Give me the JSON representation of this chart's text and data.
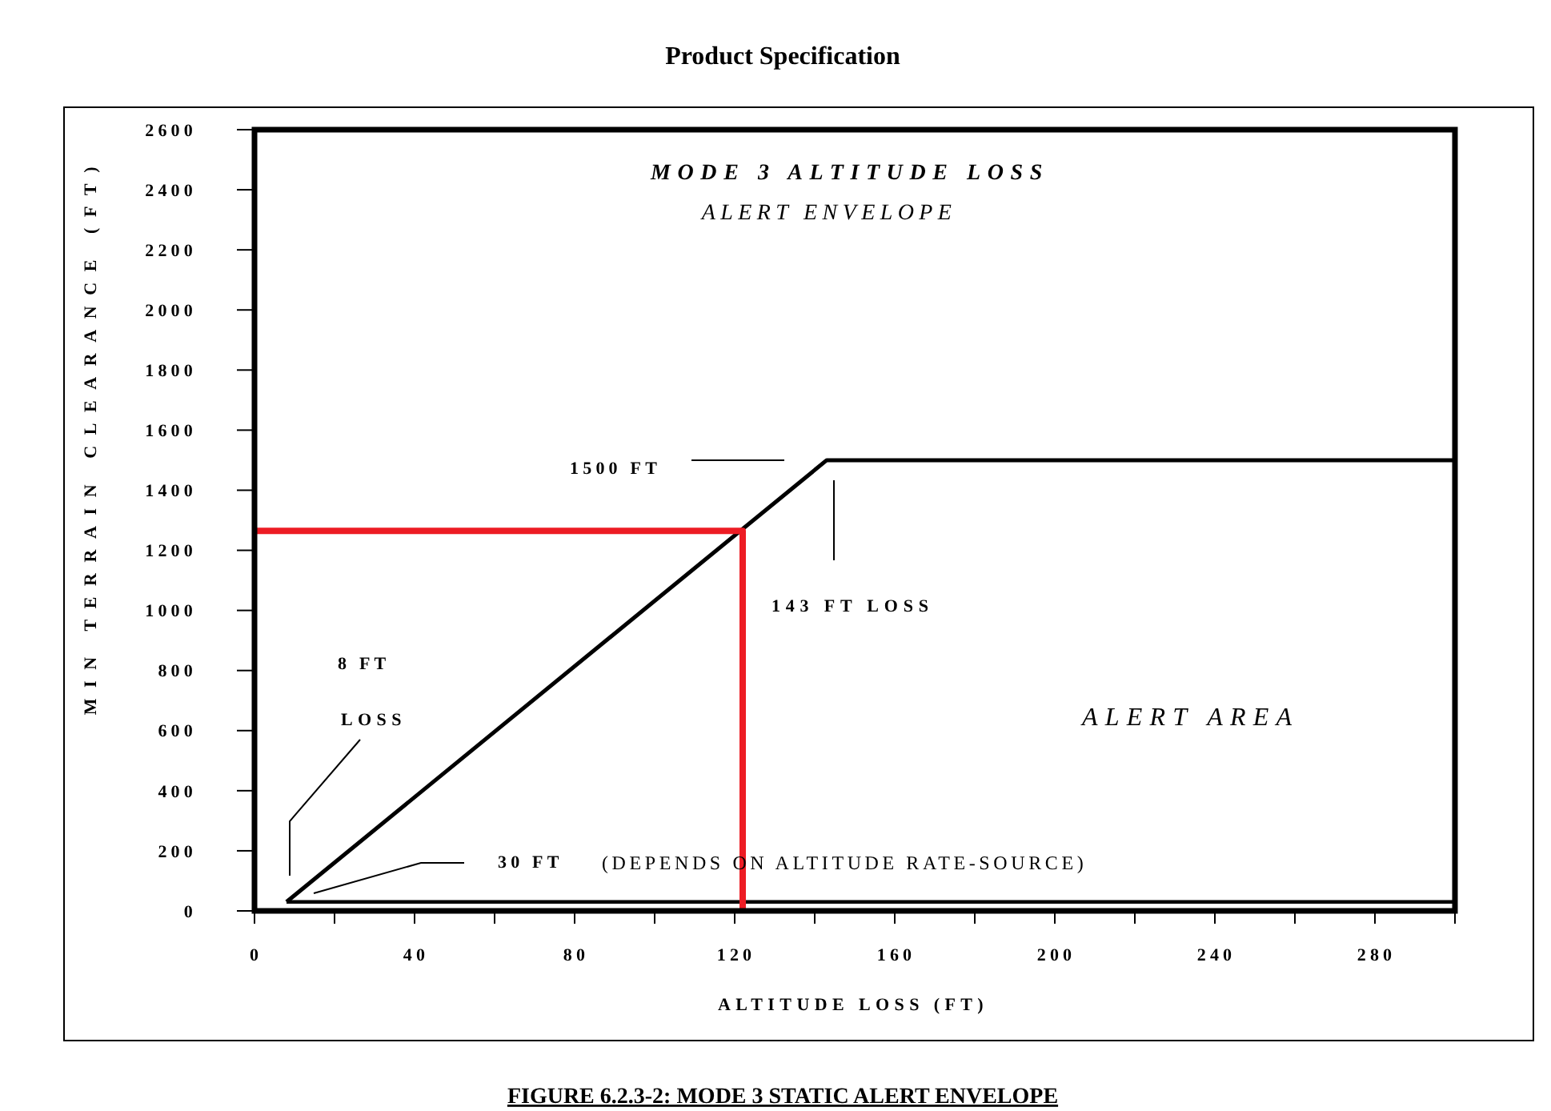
{
  "chart_data": {
    "type": "line",
    "title": "Product Specification",
    "xlabel": "ALTITUDE LOSS (FT)",
    "ylabel": "MIN TERRAIN CLEARANCE (FT)",
    "series": [
      {
        "color": "#000000",
        "x": [
          8,
          143,
          300
        ],
        "values": [
          30,
          1500,
          1500
        ]
      },
      {
        "color": "#000000",
        "x": [
          8,
          300
        ],
        "values": [
          30,
          30
        ]
      },
      {
        "color": "#ed1c24",
        "x": [
          0,
          122,
          122
        ],
        "values": [
          1265,
          1265,
          0
        ]
      }
    ],
    "xlim": [
      0,
      300
    ],
    "xticks": [
      0,
      {
        "value": 20,
        "label": null
      },
      40,
      {
        "value": 60,
        "label": null
      },
      80,
      {
        "value": 100,
        "label": null
      },
      120,
      {
        "value": 140,
        "label": null
      },
      160,
      {
        "value": 180,
        "label": null
      },
      200,
      {
        "value": 220,
        "label": null
      },
      240,
      {
        "value": 260,
        "label": null
      },
      280,
      {
        "value": 300,
        "label": null
      }
    ],
    "ylim": [
      0,
      2600
    ],
    "yticks": [
      0,
      200,
      400,
      600,
      800,
      1000,
      1200,
      1400,
      1600,
      1800,
      2000,
      2200,
      2400,
      2600
    ],
    "annotations": [
      "MODE 3 ALTITUDE LOSS",
      "ALERT ENVELOPE",
      "1500 FT",
      "143 FT LOSS",
      "8 FT",
      "LOSS",
      "30 FT",
      "(DEPENDS ON ALTITUDE RATE-SOURCE)",
      "ALERT AREA",
      "FIGURE 6.2.3-2: MODE 3 STATIC ALERT ENVELOPE"
    ]
  }
}
